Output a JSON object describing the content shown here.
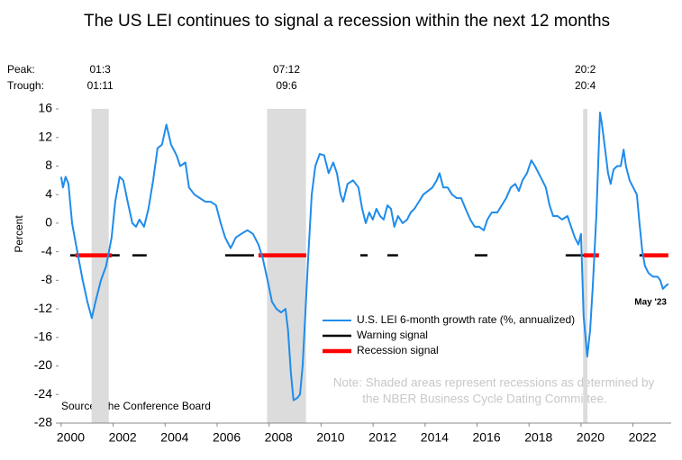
{
  "chart_data": {
    "type": "line",
    "title": "The US LEI continues to signal a recession within the next 12 months",
    "y_label": "Percent",
    "xlim": [
      1999.9,
      2023.47
    ],
    "ylim": [
      -28,
      16
    ],
    "yticks": [
      16,
      12,
      8,
      4,
      0,
      -4,
      -8,
      -12,
      -16,
      -20,
      -24,
      -28
    ],
    "xticks": [
      2000,
      2002,
      2004,
      2006,
      2008,
      2010,
      2012,
      2014,
      2016,
      2018,
      2020,
      2022
    ],
    "peak_label": "Peak:",
    "trough_label": "Trough:",
    "recessions": [
      {
        "start": 2001.17,
        "end": 2001.83,
        "peak": "01:3",
        "trough": "01:11"
      },
      {
        "start": 2007.92,
        "end": 2009.42,
        "peak": "07:12",
        "trough": "09:6"
      },
      {
        "start": 2020.08,
        "end": 2020.25,
        "peak": "20:2",
        "trough": "20:4"
      }
    ],
    "series": [
      {
        "name": "U.S. LEI 6-month growth rate (%, annualized)",
        "color": "#1f8ceb",
        "x": [
          2000.0,
          2000.07,
          2000.17,
          2000.28,
          2000.42,
          2000.62,
          2000.83,
          2001.01,
          2001.18,
          2001.32,
          2001.53,
          2001.73,
          2001.94,
          2002.08,
          2002.25,
          2002.39,
          2002.56,
          2002.74,
          2002.88,
          2003.01,
          2003.19,
          2003.36,
          2003.54,
          2003.71,
          2003.88,
          2004.05,
          2004.23,
          2004.44,
          2004.58,
          2004.78,
          2004.92,
          2005.13,
          2005.34,
          2005.55,
          2005.75,
          2005.96,
          2006.14,
          2006.31,
          2006.52,
          2006.72,
          2006.93,
          2007.17,
          2007.38,
          2007.59,
          2007.76,
          2007.94,
          2008.11,
          2008.28,
          2008.46,
          2008.63,
          2008.73,
          2008.84,
          2008.94,
          2009.08,
          2009.19,
          2009.29,
          2009.39,
          2009.5,
          2009.64,
          2009.78,
          2009.95,
          2010.12,
          2010.29,
          2010.47,
          2010.61,
          2010.75,
          2010.85,
          2011.02,
          2011.23,
          2011.44,
          2011.58,
          2011.72,
          2011.85,
          2011.99,
          2012.13,
          2012.27,
          2012.41,
          2012.55,
          2012.69,
          2012.82,
          2012.96,
          2013.14,
          2013.31,
          2013.45,
          2013.59,
          2013.76,
          2013.93,
          2014.11,
          2014.28,
          2014.45,
          2014.56,
          2014.7,
          2014.87,
          2015.04,
          2015.22,
          2015.39,
          2015.56,
          2015.74,
          2015.91,
          2016.08,
          2016.26,
          2016.4,
          2016.57,
          2016.78,
          2016.95,
          2017.12,
          2017.3,
          2017.47,
          2017.61,
          2017.75,
          2017.92,
          2018.09,
          2018.23,
          2018.37,
          2018.51,
          2018.65,
          2018.79,
          2018.93,
          2019.1,
          2019.27,
          2019.48,
          2019.62,
          2019.76,
          2019.9,
          2020.0,
          2020.1,
          2020.24,
          2020.35,
          2020.45,
          2020.59,
          2020.66,
          2020.73,
          2020.8,
          2020.94,
          2021.04,
          2021.14,
          2021.25,
          2021.39,
          2021.53,
          2021.64,
          2021.73,
          2021.87,
          2022.01,
          2022.15,
          2022.25,
          2022.36,
          2022.46,
          2022.6,
          2022.77,
          2022.95,
          2023.05,
          2023.15,
          2023.26,
          2023.36
        ],
        "values": [
          6.5,
          5,
          6.5,
          5.5,
          0,
          -4,
          -8,
          -11,
          -13.3,
          -11,
          -8,
          -6,
          -2,
          3,
          6.5,
          6,
          3,
          0,
          -0.5,
          0.5,
          -0.5,
          2,
          6,
          10.5,
          11,
          13.8,
          11,
          9.5,
          8,
          8.5,
          5,
          4,
          3.5,
          3,
          3,
          2.5,
          0,
          -2,
          -3.5,
          -2,
          -1.5,
          -1,
          -1.5,
          -3,
          -5,
          -8,
          -11,
          -12,
          -12.5,
          -12,
          -15,
          -21,
          -24.8,
          -24.5,
          -24,
          -20,
          -13,
          -5,
          4,
          8,
          9.7,
          9.5,
          7,
          8.5,
          7,
          4,
          3,
          5.5,
          6,
          5,
          2,
          0,
          1.5,
          0.5,
          2,
          1,
          0.5,
          2.5,
          2,
          -0.5,
          1,
          0,
          0.5,
          1.5,
          2,
          3,
          4,
          4.5,
          5,
          6,
          7,
          5,
          5,
          4,
          3.5,
          3.5,
          2,
          0.5,
          -0.5,
          -0.5,
          -1,
          0.5,
          1.5,
          1.5,
          2.5,
          3.5,
          5,
          5.5,
          4.5,
          6,
          7,
          8.8,
          8,
          7,
          6,
          5,
          2.5,
          1,
          1,
          0.5,
          1,
          -0.5,
          -2,
          -3,
          -1.5,
          -13,
          -18.7,
          -15,
          -9,
          1,
          8,
          15.5,
          14,
          10,
          7,
          5.5,
          7.5,
          8,
          8,
          10.3,
          8,
          6,
          5,
          4,
          0,
          -4,
          -6,
          -7,
          -7.5,
          -7.5,
          -8,
          -9.2,
          -8.8,
          -8.5
        ]
      }
    ],
    "signals": [
      {
        "name": "Warning signal",
        "color": "#000000",
        "level": -4.5,
        "segments": [
          [
            2000.35,
            2000.55
          ],
          [
            2001.94,
            2002.25
          ],
          [
            2002.74,
            2003.29
          ],
          [
            2006.31,
            2007.42
          ],
          [
            2011.51,
            2011.79
          ],
          [
            2012.55,
            2012.96
          ],
          [
            2015.91,
            2016.4
          ],
          [
            2019.41,
            2020.1
          ],
          [
            2022.25,
            2022.36
          ]
        ]
      },
      {
        "name": "Recession signal",
        "color": "#ff0000",
        "level": -4.5,
        "segments": [
          [
            2000.55,
            2001.95
          ],
          [
            2007.59,
            2009.43
          ],
          [
            2020.1,
            2020.69
          ],
          [
            2022.36,
            2023.36
          ]
        ]
      }
    ],
    "end_label": "May '23",
    "note": [
      "Note: Shaded areas represent recessions as determined by",
      "the NBER Business Cycle Dating Committee."
    ],
    "source": "Source: The Conference Board"
  }
}
